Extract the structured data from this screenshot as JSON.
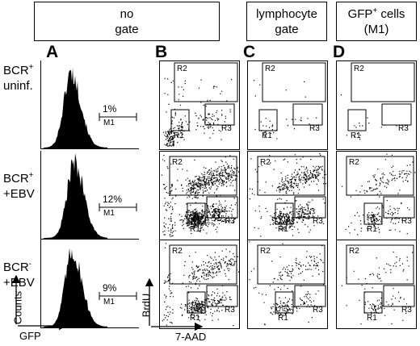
{
  "headers": {
    "no_gate": [
      "no",
      "gate"
    ],
    "lymphocyte_gate": [
      "lymphocyte",
      "gate"
    ],
    "gfp_cells": {
      "line1_base": "GFP",
      "line1_sup": "+",
      "line1_rest": " cells",
      "line2": "(M1)"
    }
  },
  "panel_letters": [
    "A",
    "B",
    "C",
    "D"
  ],
  "rows": [
    {
      "label_base": "BCR",
      "label_sup": "+",
      "label_line2": "uninf.",
      "m1_percent": "1%",
      "density": "low"
    },
    {
      "label_base": "BCR",
      "label_sup": "+",
      "label_line2": "+EBV",
      "m1_percent": "12%",
      "density": "high"
    },
    {
      "label_base": "BCR",
      "label_sup": "-",
      "label_line2": "+EBV",
      "m1_percent": "9%",
      "density": "medium"
    }
  ],
  "gate_labels": {
    "m1": "M1",
    "r1": "R1",
    "r2": "R2",
    "r3": "R3"
  },
  "axis_labels": {
    "hist_y": "Counts",
    "hist_x": "GFP",
    "dot_y": "BrdU",
    "dot_x": "7-AAD"
  },
  "colors": {
    "ink": "#000000",
    "background": "#ffffff"
  }
}
